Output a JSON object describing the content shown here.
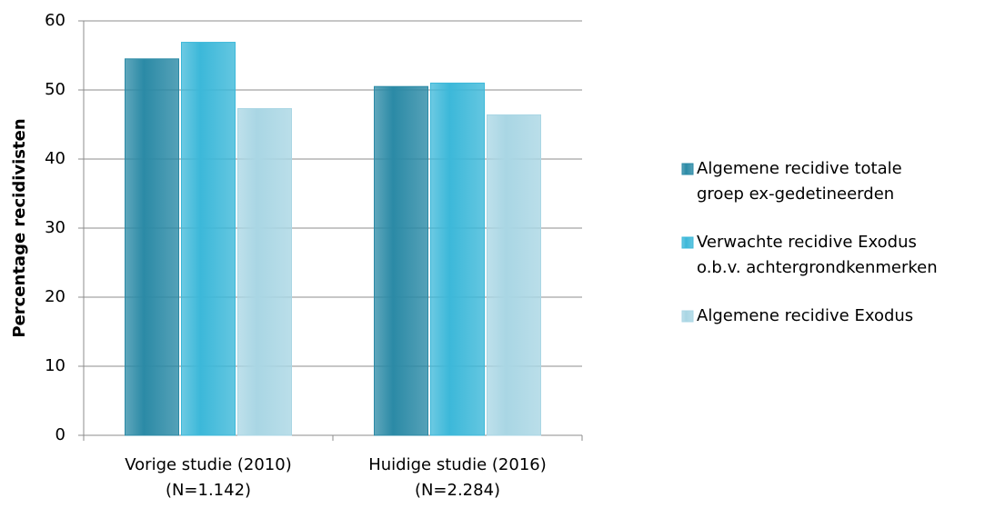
{
  "chart_data": {
    "type": "bar",
    "ylabel": "Percentage recidivisten",
    "categories": [
      "Vorige studie (2010)\n(N=1.142)",
      "Huidige studie (2016)\n(N=2.284)"
    ],
    "series": [
      {
        "name": "Algemene recidive totale\ngroep ex-gedetineerden",
        "color": "#2b8aa6",
        "values": [
          54.5,
          50.5
        ]
      },
      {
        "name": "Verwachte recidive Exodus\no.b.v. achtergrondkenmerken",
        "color": "#3cb8d9",
        "values": [
          56.9,
          51.0
        ]
      },
      {
        "name": "Algemene recidive Exodus",
        "color": "#a9d6e4",
        "values": [
          47.3,
          46.4
        ]
      }
    ],
    "ylim": [
      0,
      60
    ],
    "yticks": [
      0,
      10,
      20,
      30,
      40,
      50,
      60
    ],
    "grid": true,
    "legend": "right"
  }
}
